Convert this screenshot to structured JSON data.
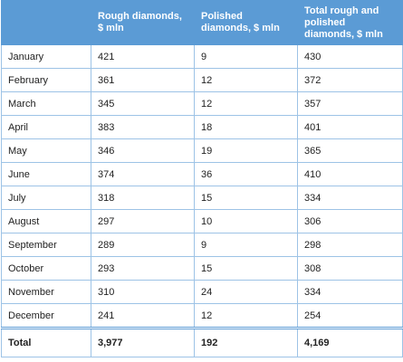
{
  "table": {
    "columns": [
      "Rough diamonds, $ mln",
      "Polished diamonds, $ mln",
      "Total rough and polished diamonds, $ mln"
    ],
    "rows": [
      [
        "January",
        "421",
        "9",
        "430"
      ],
      [
        "February",
        "361",
        "12",
        "372"
      ],
      [
        "March",
        "345",
        "12",
        "357"
      ],
      [
        "April",
        "383",
        "18",
        "401"
      ],
      [
        "May",
        "346",
        "19",
        "365"
      ],
      [
        "June",
        "374",
        "36",
        "410"
      ],
      [
        "July",
        "318",
        "15",
        "334"
      ],
      [
        "August",
        "297",
        "10",
        "306"
      ],
      [
        "September",
        "289",
        "9",
        "298"
      ],
      [
        "October",
        "293",
        "15",
        "308"
      ],
      [
        "November",
        "310",
        "24",
        "334"
      ],
      [
        "December",
        "241",
        "12",
        "254"
      ]
    ],
    "total": [
      "Total",
      "3,977",
      "192",
      "4,169"
    ]
  }
}
